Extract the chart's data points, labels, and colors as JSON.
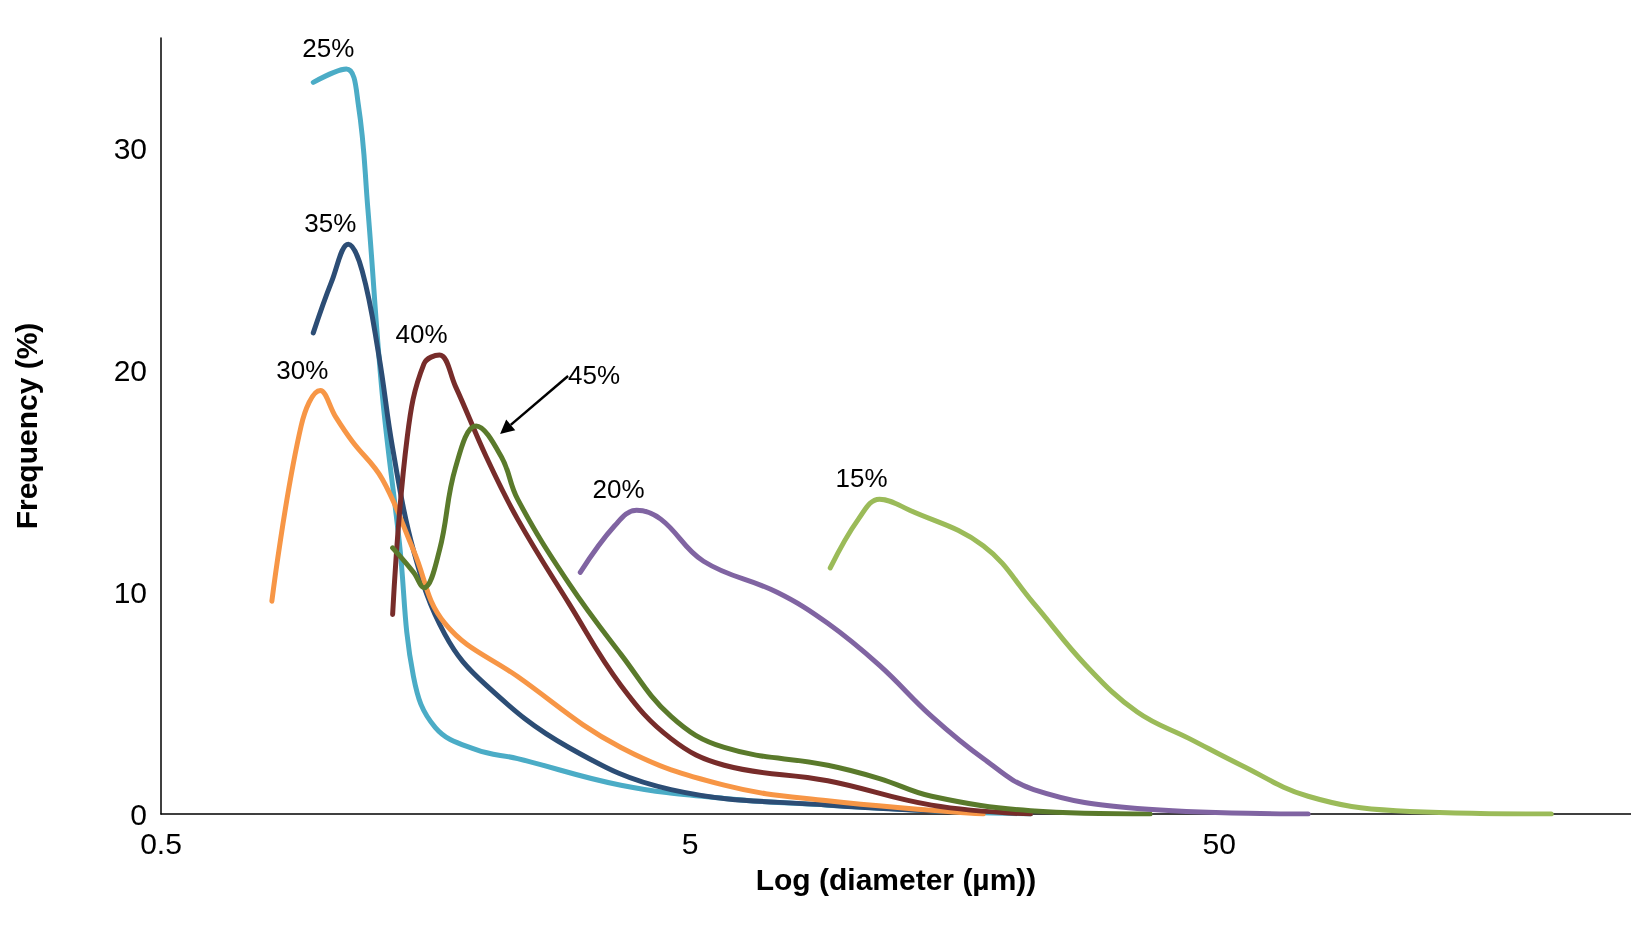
{
  "chart_data": {
    "type": "line",
    "xlabel": "Log (diameter (µm))",
    "ylabel": "Frequency (%)",
    "log": "x",
    "xlim": [
      0.5,
      300
    ],
    "xticks": [
      0.5,
      5,
      50
    ],
    "ylim": [
      0,
      35
    ],
    "yticks": [
      0,
      10,
      20,
      30
    ],
    "grid": false,
    "legend": false,
    "marker": "none",
    "line_style": "solid",
    "series": [
      {
        "name": "25%",
        "color": "#4bacc6",
        "x": [
          0.97,
          1.12,
          1.18,
          1.23,
          1.31,
          1.41,
          1.5,
          1.65,
          1.97,
          2.36,
          3.7,
          5.8,
          9.1,
          14.3,
          22
        ],
        "values": [
          33.0,
          33.6,
          32,
          27.3,
          18.9,
          12.3,
          6.2,
          3.9,
          2.9,
          2.5,
          1.3,
          0.7,
          0.4,
          0.15,
          0
        ]
      },
      {
        "name": "35%",
        "color": "#2c4d75",
        "x": [
          0.97,
          1.05,
          1.13,
          1.2,
          1.29,
          1.37,
          1.5,
          1.72,
          2.06,
          2.95,
          4.6,
          9.1,
          17.9
        ],
        "values": [
          21.7,
          24.0,
          25.7,
          24.5,
          20.7,
          16.5,
          11.9,
          8.1,
          5.8,
          3.0,
          1.1,
          0.4,
          0.05
        ]
      },
      {
        "name": "30%",
        "color": "#f79646",
        "x": [
          0.81,
          0.92,
          1.0,
          1.07,
          1.15,
          1.31,
          1.5,
          1.72,
          2.36,
          3.7,
          5.8,
          9.1,
          17.9
        ],
        "values": [
          9.6,
          17.5,
          19.1,
          17.9,
          16.8,
          15.1,
          11.9,
          8.6,
          6.2,
          3.0,
          1.3,
          0.6,
          0
        ]
      },
      {
        "name": "40%",
        "color": "#772c2a",
        "x": [
          1.37,
          1.46,
          1.57,
          1.68,
          1.8,
          2.06,
          2.36,
          2.95,
          3.7,
          4.6,
          5.8,
          9.1,
          14.3,
          22
        ],
        "values": [
          9.0,
          17.0,
          20.3,
          20.7,
          19.3,
          16.1,
          13.3,
          9.5,
          5.8,
          3.4,
          2.2,
          1.5,
          0.4,
          0
        ]
      },
      {
        "color": "#5a7a2b",
        "x": [
          1.37,
          1.5,
          1.57,
          1.68,
          1.8,
          1.97,
          2.2,
          2.36,
          2.95,
          3.7,
          4.6,
          5.8,
          9.1,
          11.4,
          14.3,
          22,
          37
        ],
        "values": [
          12.0,
          10.9,
          10.2,
          11.9,
          15.6,
          17.5,
          16.1,
          14.2,
          10.4,
          7.2,
          4.4,
          3.0,
          2.2,
          1.6,
          0.8,
          0.15,
          0
        ]
      },
      {
        "name": "20%",
        "color": "#8064a2",
        "x": [
          3.1,
          3.6,
          3.96,
          4.4,
          5.3,
          7.3,
          9.1,
          11.4,
          14.3,
          17.9,
          22.3,
          35,
          73.6
        ],
        "values": [
          10.9,
          13.0,
          13.7,
          13.3,
          11.4,
          10.0,
          8.6,
          6.7,
          4.4,
          2.5,
          1.1,
          0.25,
          0
        ]
      },
      {
        "name": "15%",
        "color": "#9bbb59",
        "x": [
          9.2,
          10.4,
          11.4,
          13.0,
          17.9,
          22.3,
          28,
          35,
          43.9,
          55,
          73.6,
          108,
          212
        ],
        "values": [
          11.1,
          13.3,
          14.2,
          13.7,
          12.1,
          9.5,
          6.7,
          4.6,
          3.4,
          2.2,
          0.8,
          0.15,
          0
        ]
      }
    ],
    "annotations": [
      "45%"
    ]
  }
}
